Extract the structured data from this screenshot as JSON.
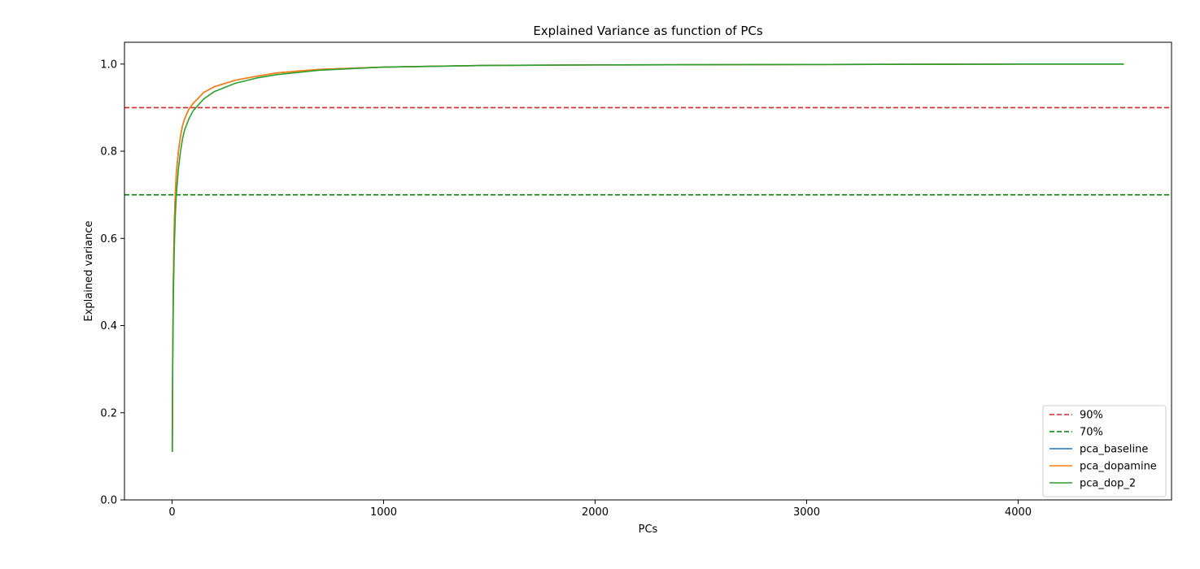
{
  "chart_data": {
    "type": "line",
    "title": "Explained Variance as function of PCs",
    "xlabel": "PCs",
    "ylabel": "Explained variance",
    "xlim": [
      -225,
      4725
    ],
    "ylim": [
      0,
      1.05
    ],
    "xticks": [
      0,
      1000,
      2000,
      3000,
      4000
    ],
    "yticks": [
      0.0,
      0.2,
      0.4,
      0.6,
      0.8,
      1.0
    ],
    "xtick_labels": [
      "0",
      "1000",
      "2000",
      "3000",
      "4000"
    ],
    "ytick_labels": [
      "0.0",
      "0.2",
      "0.4",
      "0.6",
      "0.8",
      "1.0"
    ],
    "grid": false,
    "legend_position": "lower-right",
    "hlines": [
      {
        "name": "90%",
        "y": 0.9,
        "color": "#d62728",
        "style": "dashed"
      },
      {
        "name": "70%",
        "y": 0.7,
        "color": "#008000",
        "style": "dashed"
      }
    ],
    "series": [
      {
        "name": "pca_baseline",
        "color": "#1f77b4",
        "x": [
          1,
          3,
          6,
          10,
          15,
          20,
          30,
          40,
          50,
          60,
          80,
          100,
          150,
          200,
          300,
          400,
          500,
          700,
          1000,
          1500,
          2000,
          3000,
          4000,
          4500
        ],
        "y": [
          0.11,
          0.33,
          0.5,
          0.62,
          0.7,
          0.75,
          0.8,
          0.835,
          0.86,
          0.875,
          0.897,
          0.91,
          0.935,
          0.948,
          0.963,
          0.972,
          0.98,
          0.988,
          0.993,
          0.997,
          0.998,
          0.999,
          1.0,
          1.0
        ]
      },
      {
        "name": "pca_dopamine",
        "color": "#ff7f0e",
        "x": [
          1,
          3,
          6,
          10,
          15,
          20,
          30,
          40,
          50,
          60,
          80,
          100,
          150,
          200,
          300,
          400,
          500,
          700,
          1000,
          1500,
          2000,
          3000,
          4000,
          4500
        ],
        "y": [
          0.11,
          0.33,
          0.5,
          0.62,
          0.7,
          0.75,
          0.8,
          0.835,
          0.86,
          0.875,
          0.897,
          0.91,
          0.935,
          0.948,
          0.963,
          0.972,
          0.98,
          0.988,
          0.993,
          0.997,
          0.998,
          0.999,
          1.0,
          1.0
        ]
      },
      {
        "name": "pca_dop_2",
        "color": "#2ca02c",
        "x": [
          1,
          3,
          6,
          10,
          15,
          20,
          30,
          40,
          50,
          60,
          80,
          100,
          150,
          200,
          300,
          400,
          500,
          700,
          1000,
          1500,
          2000,
          3000,
          4000,
          4500
        ],
        "y": [
          0.11,
          0.3,
          0.46,
          0.57,
          0.65,
          0.7,
          0.76,
          0.8,
          0.83,
          0.85,
          0.875,
          0.893,
          0.92,
          0.937,
          0.956,
          0.968,
          0.976,
          0.986,
          0.993,
          0.997,
          0.998,
          0.999,
          1.0,
          1.0
        ]
      }
    ]
  }
}
